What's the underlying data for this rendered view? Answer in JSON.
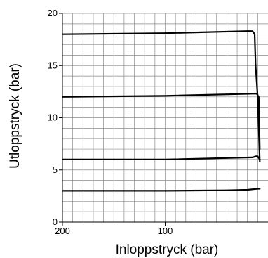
{
  "chart_data": {
    "type": "line",
    "title": "",
    "xlabel": "Inloppstryck (bar)",
    "ylabel": "Utloppstryck (bar)",
    "xlim": [
      200,
      0
    ],
    "ylim": [
      0,
      20
    ],
    "x_reversed": true,
    "x_ticks": [
      "200",
      "100"
    ],
    "y_ticks": [
      "0",
      "5",
      "10",
      "15",
      "20"
    ],
    "grid": true,
    "series": [
      {
        "x": [
          200,
          100,
          20,
          15,
          13,
          12,
          10,
          9,
          8
        ],
        "y": [
          18.0,
          18.1,
          18.3,
          18.3,
          18.0,
          15.0,
          12.0,
          9.0,
          5.8
        ]
      },
      {
        "x": [
          200,
          100,
          15,
          11,
          9,
          8
        ],
        "y": [
          12.0,
          12.1,
          12.3,
          12.3,
          12.0,
          7.0
        ]
      },
      {
        "x": [
          200,
          100,
          15,
          12,
          10,
          8
        ],
        "y": [
          6.0,
          6.0,
          6.2,
          6.3,
          6.3,
          6.0
        ]
      },
      {
        "x": [
          200,
          100,
          40,
          20,
          10,
          8
        ],
        "y": [
          3.0,
          3.0,
          3.05,
          3.1,
          3.2,
          3.2
        ]
      }
    ]
  }
}
